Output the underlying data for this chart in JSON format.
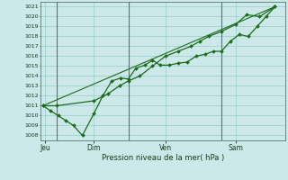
{
  "xlabel": "Pression niveau de la mer( hPa )",
  "bg_color": "#cce8e8",
  "grid_color": "#99cccc",
  "line_color": "#1a6b1a",
  "dark_line_color": "#2d6e2d",
  "vline_color": "#557777",
  "ylim": [
    1007.5,
    1021.5
  ],
  "yticks": [
    1008,
    1009,
    1010,
    1011,
    1012,
    1013,
    1014,
    1015,
    1016,
    1017,
    1018,
    1019,
    1020,
    1021
  ],
  "xtick_labels": [
    "Jeu",
    "Dim",
    "Ven",
    "Sam"
  ],
  "xtick_positions": [
    0.08,
    2.0,
    4.8,
    7.55
  ],
  "vline_positions": [
    0.55,
    3.35,
    7.0
  ],
  "series1_x": [
    0.0,
    0.3,
    0.6,
    0.9,
    1.2,
    1.55,
    2.0,
    2.35,
    2.7,
    3.05,
    3.35,
    3.65,
    4.0,
    4.3,
    4.6,
    4.95,
    5.3,
    5.65,
    6.0,
    6.35,
    6.7,
    7.0,
    7.35,
    7.7,
    8.05,
    8.4,
    8.75,
    9.1
  ],
  "series1_y": [
    1011,
    1010.5,
    1010,
    1009.5,
    1009,
    1008,
    1010.2,
    1012,
    1013.5,
    1013.8,
    1013.7,
    1014.8,
    1015.1,
    1015.6,
    1015.1,
    1015.1,
    1015.3,
    1015.4,
    1016,
    1016.2,
    1016.5,
    1016.5,
    1017.5,
    1018.2,
    1018,
    1019,
    1020,
    1021
  ],
  "series2_x": [
    0.0,
    0.55,
    2.0,
    2.55,
    3.0,
    3.35,
    3.8,
    4.3,
    4.8,
    5.3,
    5.8,
    6.15,
    6.5,
    7.0,
    7.55,
    8.0,
    8.5,
    9.1
  ],
  "series2_y": [
    1011,
    1011,
    1011.5,
    1012.2,
    1013,
    1013.5,
    1014,
    1015,
    1016,
    1016.5,
    1017,
    1017.5,
    1018,
    1018.5,
    1019.2,
    1020.2,
    1020,
    1021
  ],
  "trend_x": [
    0.0,
    9.1
  ],
  "trend_y": [
    1011,
    1021
  ],
  "xlim": [
    -0.1,
    9.5
  ]
}
